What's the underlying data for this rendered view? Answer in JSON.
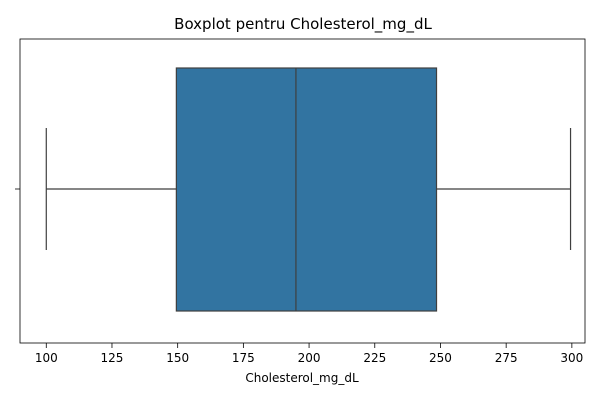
{
  "chart_data": {
    "type": "box",
    "title": "Boxplot pentru Cholesterol_mg_dL",
    "xlabel": "Cholesterol_mg_dL",
    "ylabel": "",
    "orientation": "horizontal",
    "xlim": [
      90,
      305
    ],
    "xticks": [
      100,
      125,
      150,
      175,
      200,
      225,
      250,
      275,
      300
    ],
    "grid": false,
    "legend": "none",
    "box": {
      "whisker_low": 100,
      "q1": 149.5,
      "median": 195,
      "q3": 248.5,
      "whisker_high": 299.5
    },
    "colors": {
      "box_fill": "#3274a1",
      "line": "#3f3f3f"
    }
  }
}
